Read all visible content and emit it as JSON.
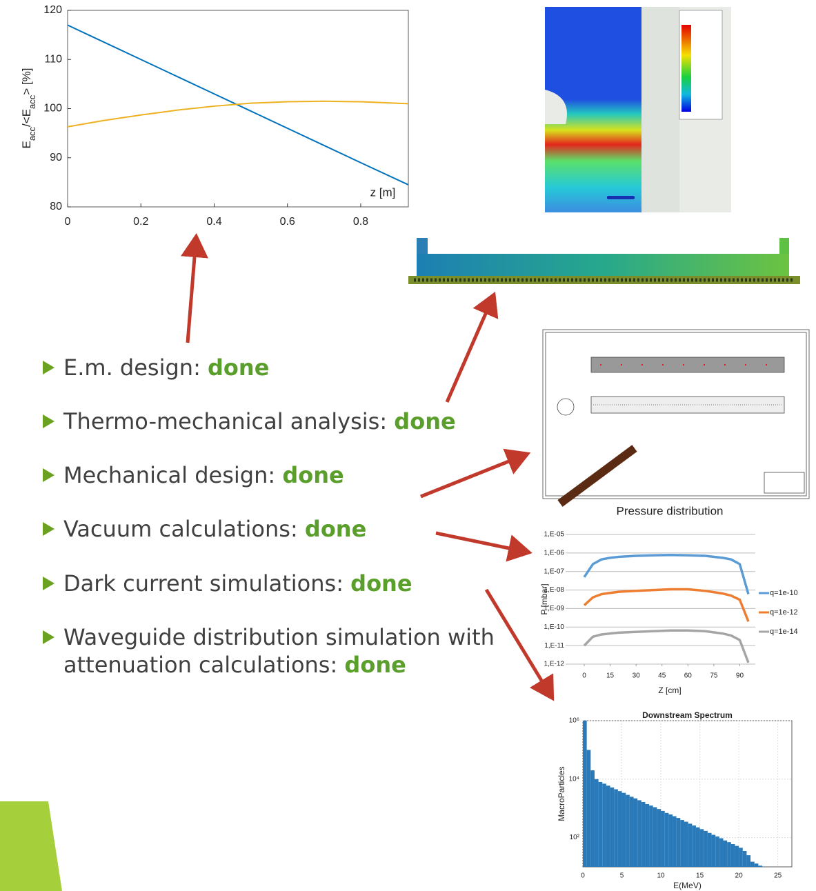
{
  "bullets": [
    {
      "text": "E.m. design:",
      "status": "done"
    },
    {
      "text": "Thermo-mechanical analysis:",
      "status": "done"
    },
    {
      "text": "Mechanical design:",
      "status": "done"
    },
    {
      "text": "Vacuum calculations:",
      "status": "done"
    },
    {
      "text": "Dark current simulations:",
      "status": "done"
    },
    {
      "text": "Waveguide distribution simulation with attenuation calculations:",
      "status": "done"
    }
  ],
  "chart_data": [
    {
      "type": "line",
      "y_label_parts": [
        "E",
        "acc",
        "/<E",
        "acc",
        "> [%]"
      ],
      "annotation": "z [m]",
      "xlim": [
        0,
        0.93
      ],
      "ylim": [
        80,
        120
      ],
      "xticks": [
        0,
        0.2,
        0.4,
        0.6,
        0.8
      ],
      "yticks": [
        80,
        90,
        100,
        110,
        120
      ],
      "grid": false,
      "x": [
        0,
        0.1,
        0.2,
        0.3,
        0.4,
        0.5,
        0.6,
        0.7,
        0.8,
        0.93
      ],
      "series": [
        {
          "color": "#0072bd",
          "values": [
            117,
            113.5,
            110,
            106.5,
            103,
            99.5,
            96,
            92.5,
            89,
            84.5
          ]
        },
        {
          "color": "#edb120",
          "values": [
            96.3,
            97.6,
            98.7,
            99.7,
            100.5,
            101.1,
            101.4,
            101.5,
            101.4,
            101.0
          ]
        }
      ]
    },
    {
      "type": "line",
      "title": "Pressure distribution",
      "x_label": "Z [cm]",
      "y_label": "P [mbar]",
      "log_y": true,
      "grid": true,
      "xlim": [
        0,
        99
      ],
      "ylim": [
        1e-12,
        1e-05
      ],
      "xticks": [
        0,
        15,
        30,
        45,
        60,
        75,
        90
      ],
      "yticks": [
        {
          "value": 1e-05,
          "label": "1,E-05"
        },
        {
          "value": 1e-06,
          "label": "1,E-06"
        },
        {
          "value": 1e-07,
          "label": "1,E-07"
        },
        {
          "value": 1e-08,
          "label": "1,E-08"
        },
        {
          "value": 1e-09,
          "label": "1,E-09"
        },
        {
          "value": 1e-10,
          "label": "1,E-10"
        },
        {
          "value": 1e-11,
          "label": "1,E-11"
        },
        {
          "value": 1e-12,
          "label": "1,E-12"
        }
      ],
      "x": [
        0,
        5,
        10,
        15,
        20,
        30,
        40,
        50,
        60,
        70,
        80,
        85,
        90,
        95
      ],
      "series": [
        {
          "name": "q=1e-10",
          "color": "#5b9bd5",
          "values": [
            5e-08,
            2.5e-07,
            4.5e-07,
            5.5e-07,
            6.2e-07,
            7e-07,
            7.5e-07,
            7.8e-07,
            7.5e-07,
            7e-07,
            5.5e-07,
            4.5e-07,
            2.5e-07,
            6e-09
          ]
        },
        {
          "name": "q=1e-12",
          "color": "#ed7d31",
          "values": [
            1.5e-09,
            4e-09,
            6e-09,
            7e-09,
            8e-09,
            9e-09,
            1e-08,
            1.1e-08,
            1.1e-08,
            9e-09,
            6.5e-09,
            5e-09,
            3e-09,
            2e-10
          ]
        },
        {
          "name": "q=1e-14",
          "color": "#a5a5a5",
          "values": [
            1e-11,
            3e-11,
            4e-11,
            4.5e-11,
            5e-11,
            5.5e-11,
            6e-11,
            6.5e-11,
            6.5e-11,
            6e-11,
            4.5e-11,
            3.5e-11,
            2e-11,
            1.2e-12
          ]
        }
      ]
    },
    {
      "type": "histogram",
      "title": "Downstream Spectrum",
      "x_label": "E(MeV)",
      "y_label": "MacroParticles",
      "log_y": true,
      "grid": true,
      "color": "#2a7ab9",
      "xlim": [
        0,
        26.8
      ],
      "ylim": [
        10,
        1000000
      ],
      "xticks": [
        0,
        5,
        10,
        15,
        20,
        25
      ],
      "yticks": [
        {
          "value": 1000000,
          "label": "10⁶"
        },
        {
          "value": 10000,
          "label": "10⁴"
        },
        {
          "value": 100,
          "label": "10²"
        }
      ],
      "bins": [
        0,
        0.5,
        1,
        1.5,
        2,
        2.5,
        3,
        3.5,
        4,
        4.5,
        5,
        5.5,
        6,
        6.5,
        7,
        7.5,
        8,
        8.5,
        9,
        9.5,
        10,
        10.5,
        11,
        11.5,
        12,
        12.5,
        13,
        13.5,
        14,
        14.5,
        15,
        15.5,
        16,
        16.5,
        17,
        17.5,
        18,
        18.5,
        19,
        19.5,
        20,
        20.5,
        21,
        21.5,
        22,
        22.5,
        23
      ],
      "values": [
        1000000,
        100000,
        20000,
        10000,
        8000,
        7000,
        6000,
        5200,
        4500,
        3900,
        3400,
        2900,
        2500,
        2200,
        1900,
        1650,
        1400,
        1250,
        1100,
        950,
        820,
        700,
        620,
        540,
        470,
        400,
        350,
        300,
        260,
        225,
        195,
        170,
        145,
        125,
        110,
        95,
        80,
        70,
        60,
        52,
        45,
        35,
        25,
        15,
        13,
        11
      ]
    }
  ]
}
